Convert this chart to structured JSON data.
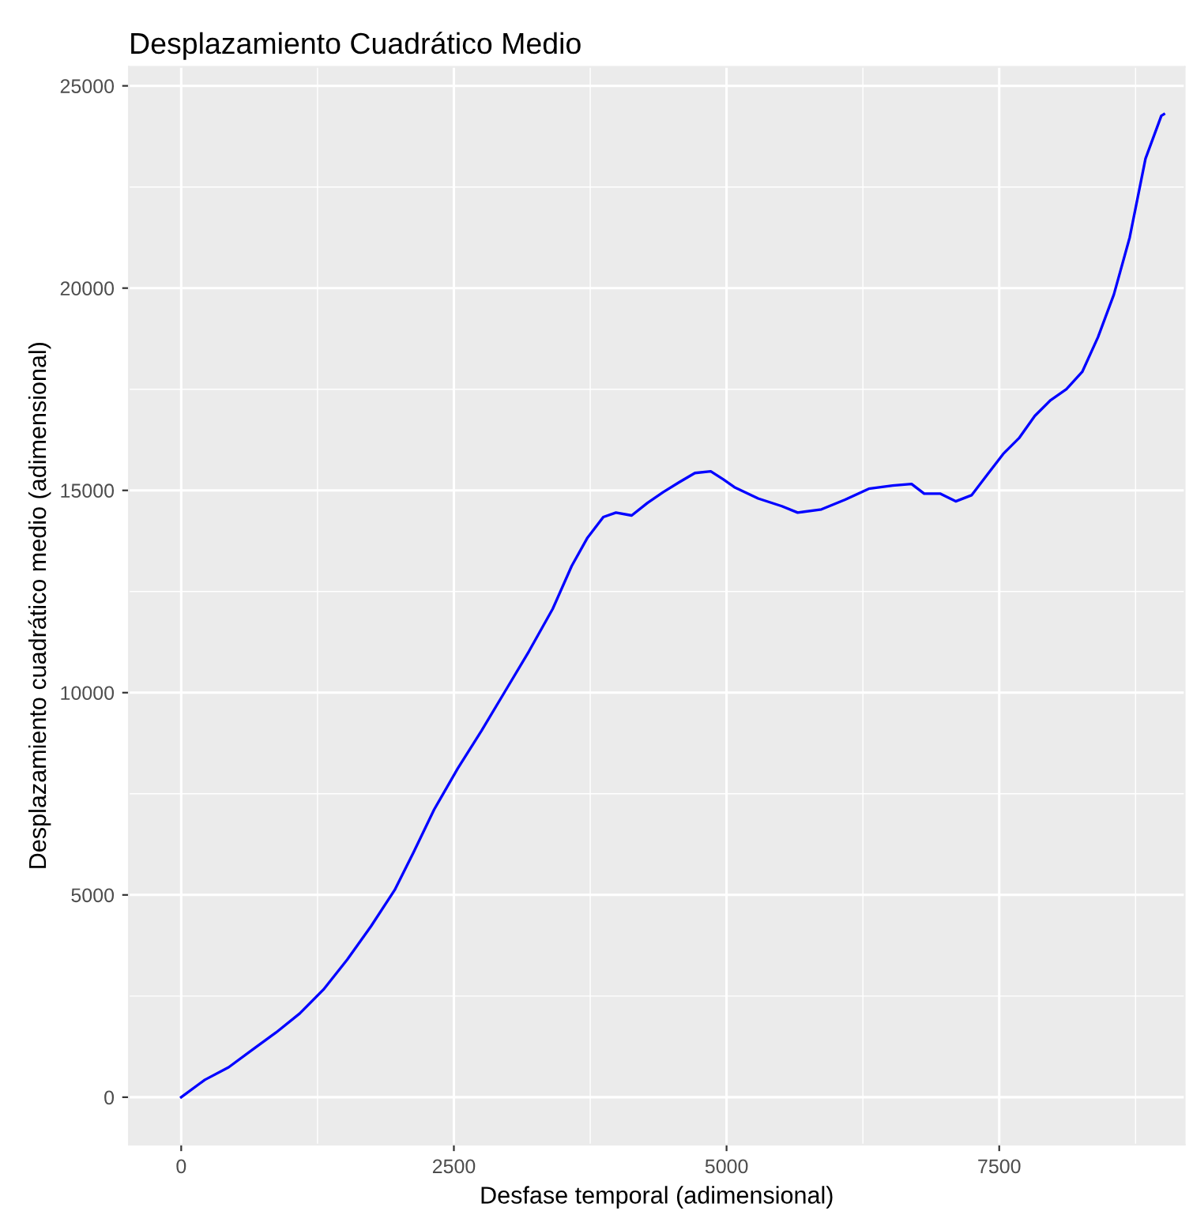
{
  "chart_data": {
    "type": "line",
    "title": "Desplazamiento Cuadrático Medio",
    "xlabel": "Desfase temporal (adimensional)",
    "ylabel": "Desplazamiento cuadrático medio (adimensional)",
    "xlim": [
      -480,
      9200
    ],
    "ylim": [
      -1170,
      25470
    ],
    "xticks": [
      0,
      2500,
      5000,
      7500
    ],
    "yticks": [
      0,
      5000,
      10000,
      15000,
      20000,
      25000
    ],
    "grid": true,
    "marker": "none",
    "line_style": "solid",
    "x": [
      0,
      217,
      435,
      652,
      870,
      1087,
      1304,
      1522,
      1739,
      1957,
      2130,
      2319,
      2536,
      2754,
      2971,
      3188,
      3406,
      3580,
      3725,
      3870,
      3986,
      4130,
      4275,
      4420,
      4565,
      4710,
      4855,
      4971,
      5072,
      5290,
      5507,
      5652,
      5870,
      6087,
      6304,
      6522,
      6696,
      6812,
      6957,
      7101,
      7246,
      7391,
      7536,
      7681,
      7826,
      7971,
      8116,
      8261,
      8406,
      8551,
      8696,
      8841,
      8986,
      9010
    ],
    "series": [
      {
        "color": "#0000ff",
        "values": [
          0,
          430,
          740,
          1170,
          1600,
          2070,
          2660,
          3400,
          4220,
          5120,
          6050,
          7110,
          8130,
          9060,
          10040,
          11020,
          12070,
          13130,
          13830,
          14340,
          14450,
          14380,
          14690,
          14960,
          15200,
          15430,
          15470,
          15270,
          15080,
          14800,
          14610,
          14450,
          14530,
          14770,
          15040,
          15120,
          15160,
          14920,
          14920,
          14730,
          14880,
          15390,
          15900,
          16290,
          16840,
          17230,
          17500,
          17930,
          18790,
          19840,
          21250,
          23200,
          24260,
          24300
        ]
      }
    ]
  }
}
